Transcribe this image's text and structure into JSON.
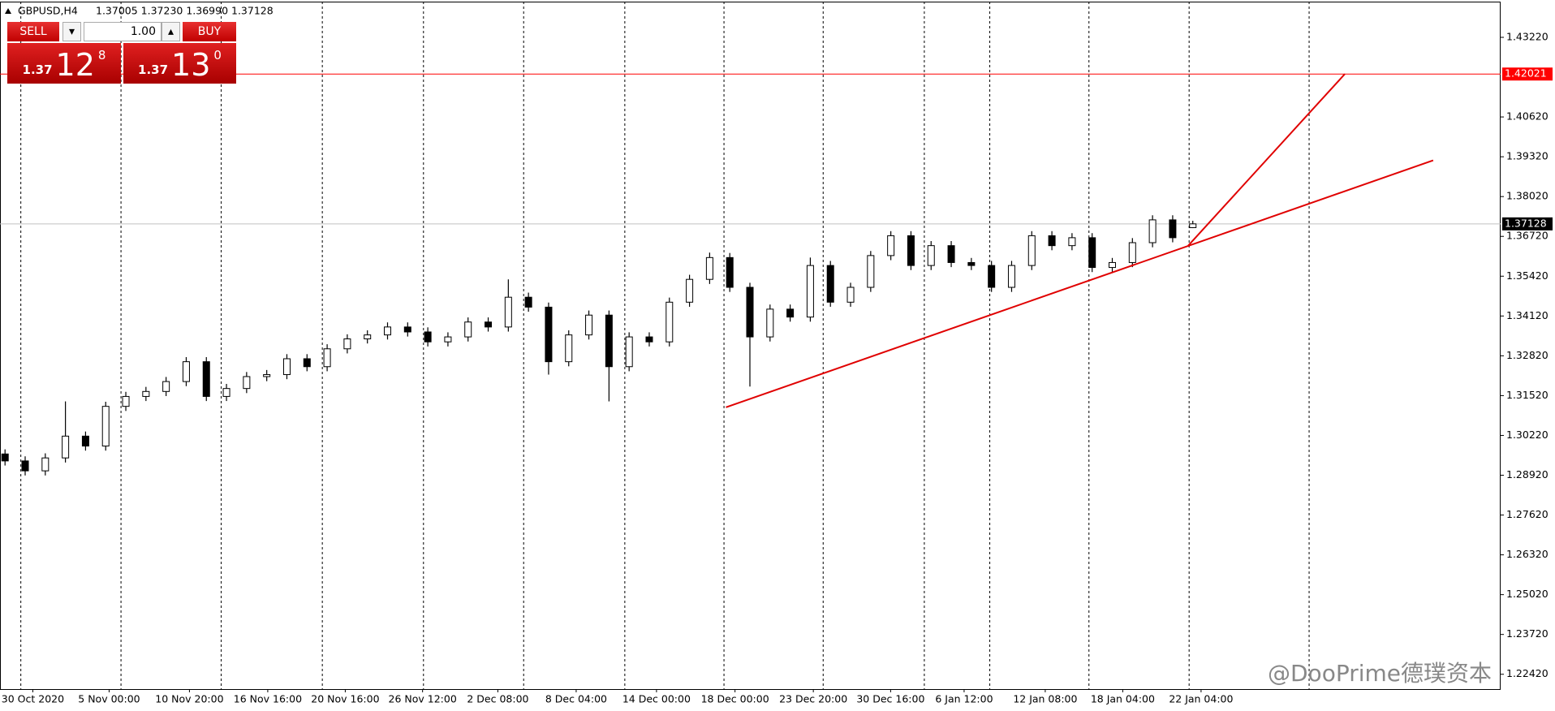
{
  "chart_data": {
    "type": "candlestick",
    "title": "GBPUSD,H4",
    "ohlc_label": "1.37005 1.37230 1.36990 1.37128",
    "open": [
      1.29614,
      1.29387,
      1.29063,
      1.29485,
      1.30197,
      1.29873,
      1.31169,
      1.31493,
      1.31655,
      1.31979,
      1.32627,
      1.31493,
      1.31752,
      1.32141,
      1.32206,
      1.32724,
      1.32465,
      1.33048,
      1.33372,
      1.33502,
      1.33761,
      1.33599,
      1.33275,
      1.33437,
      1.33923,
      1.33761,
      1.34733,
      1.34409,
      1.32627,
      1.33502,
      1.34149,
      1.32465,
      1.33437,
      1.33275,
      1.34571,
      1.35316,
      1.36028,
      1.35056,
      1.33437,
      1.34344,
      1.34085,
      1.35769,
      1.34571,
      1.35056,
      1.36093,
      1.36741,
      1.35769,
      1.36417,
      1.35866,
      1.35769,
      1.35056,
      1.35769,
      1.36741,
      1.36417,
      1.36676,
      1.35704,
      1.35866,
      1.36514,
      1.37259,
      1.37005
    ],
    "high": [
      1.29764,
      1.29537,
      1.29635,
      1.31331,
      1.30347,
      1.31319,
      1.31643,
      1.31805,
      1.32129,
      1.32777,
      1.32777,
      1.31902,
      1.32291,
      1.32356,
      1.32874,
      1.32874,
      1.33198,
      1.33522,
      1.33652,
      1.33911,
      1.33911,
      1.33749,
      1.33587,
      1.34073,
      1.34073,
      1.35316,
      1.34883,
      1.34559,
      1.33652,
      1.34299,
      1.34299,
      1.33587,
      1.33587,
      1.34721,
      1.35466,
      1.3619,
      1.36178,
      1.35206,
      1.34494,
      1.34494,
      1.36028,
      1.35919,
      1.35206,
      1.36243,
      1.36891,
      1.36891,
      1.36567,
      1.36567,
      1.36016,
      1.35919,
      1.35919,
      1.36891,
      1.36891,
      1.36826,
      1.36826,
      1.36016,
      1.36664,
      1.37409,
      1.37409,
      1.3723
    ],
    "low": [
      1.29237,
      1.28913,
      1.28913,
      1.29335,
      1.29723,
      1.29723,
      1.31019,
      1.31343,
      1.31505,
      1.31829,
      1.31343,
      1.31343,
      1.31602,
      1.31991,
      1.32056,
      1.32315,
      1.32315,
      1.32898,
      1.33222,
      1.33352,
      1.33449,
      1.33125,
      1.33125,
      1.33287,
      1.33611,
      1.33611,
      1.34259,
      1.32206,
      1.32477,
      1.33352,
      1.31331,
      1.32315,
      1.33125,
      1.33125,
      1.34421,
      1.35166,
      1.34906,
      1.31817,
      1.33287,
      1.33935,
      1.33935,
      1.34421,
      1.34421,
      1.34906,
      1.35943,
      1.35619,
      1.35619,
      1.35716,
      1.35619,
      1.34906,
      1.34906,
      1.35619,
      1.36267,
      1.36267,
      1.35554,
      1.35554,
      1.35716,
      1.36364,
      1.36526,
      1.3699
    ],
    "close": [
      1.29387,
      1.29063,
      1.29485,
      1.30197,
      1.29873,
      1.31169,
      1.31493,
      1.31655,
      1.31979,
      1.32627,
      1.31493,
      1.31752,
      1.32141,
      1.32206,
      1.32724,
      1.32465,
      1.33048,
      1.33372,
      1.33502,
      1.33761,
      1.33599,
      1.33275,
      1.33437,
      1.33923,
      1.33761,
      1.34733,
      1.34409,
      1.32627,
      1.33502,
      1.34149,
      1.32465,
      1.33437,
      1.33275,
      1.34571,
      1.35316,
      1.36028,
      1.35056,
      1.33437,
      1.34344,
      1.34085,
      1.35769,
      1.34571,
      1.35056,
      1.36093,
      1.36741,
      1.35769,
      1.36417,
      1.35866,
      1.35769,
      1.35056,
      1.35769,
      1.36741,
      1.36417,
      1.36676,
      1.35704,
      1.35866,
      1.36514,
      1.37259,
      1.36676,
      1.37128
    ],
    "xlim": [
      -0.25,
      74.29
    ],
    "ylim": [
      1.21936,
      1.44386
    ],
    "xticks": [
      {
        "value": 1.38,
        "label": "30 Oct 2020"
      },
      {
        "value": 5.17,
        "label": "5 Nov 00:00"
      },
      {
        "value": 9.16,
        "label": "10 Nov 20:00"
      },
      {
        "value": 13.05,
        "label": "16 Nov 16:00"
      },
      {
        "value": 16.9,
        "label": "20 Nov 16:00"
      },
      {
        "value": 20.74,
        "label": "26 Nov 12:00"
      },
      {
        "value": 24.48,
        "label": "2 Dec 08:00"
      },
      {
        "value": 28.37,
        "label": "8 Dec 04:00"
      },
      {
        "value": 32.36,
        "label": "14 Dec 00:00"
      },
      {
        "value": 36.26,
        "label": "18 Dec 00:00"
      },
      {
        "value": 40.15,
        "label": "23 Dec 20:00"
      },
      {
        "value": 43.99,
        "label": "30 Dec 16:00"
      },
      {
        "value": 47.64,
        "label": "6 Jan 12:00"
      },
      {
        "value": 51.67,
        "label": "12 Jan 08:00"
      },
      {
        "value": 55.52,
        "label": "18 Jan 04:00"
      },
      {
        "value": 59.41,
        "label": "22 Jan 04:00"
      }
    ],
    "yticks": [
      {
        "value": 1.4322,
        "label": "1.43220"
      },
      {
        "value": 1.4062,
        "label": "1.40620"
      },
      {
        "value": 1.3932,
        "label": "1.39320"
      },
      {
        "value": 1.3802,
        "label": "1.38020"
      },
      {
        "value": 1.3672,
        "label": "1.36720"
      },
      {
        "value": 1.3542,
        "label": "1.35420"
      },
      {
        "value": 1.3412,
        "label": "1.34120"
      },
      {
        "value": 1.3282,
        "label": "1.32820"
      },
      {
        "value": 1.3152,
        "label": "1.31520"
      },
      {
        "value": 1.3022,
        "label": "1.30220"
      },
      {
        "value": 1.2892,
        "label": "1.28920"
      },
      {
        "value": 1.2762,
        "label": "1.27620"
      },
      {
        "value": 1.2632,
        "label": "1.26320"
      },
      {
        "value": 1.2502,
        "label": "1.25020"
      },
      {
        "value": 1.2372,
        "label": "1.23720"
      },
      {
        "value": 1.2242,
        "label": "1.22420"
      }
    ],
    "hlines": [
      {
        "value": 1.42021,
        "color": "#ff0000"
      }
    ],
    "trendlines": [
      {
        "x": [
          35.81,
          70.94
        ],
        "y": [
          1.31137,
          1.39203
        ],
        "color": "#e00000"
      },
      {
        "x": [
          58.77,
          66.55
        ],
        "y": [
          1.36417,
          1.42021
        ],
        "color": "#e00000"
      }
    ]
  },
  "trade_panel": {
    "sell": "SELL",
    "buy": "BUY",
    "lot": "1.00",
    "sell_price": {
      "prefix": "1.37",
      "big": "12",
      "small": "8"
    },
    "buy_price": {
      "prefix": "1.37",
      "big": "13",
      "small": "0"
    }
  },
  "watermark": "@DooPrime德璞资本"
}
